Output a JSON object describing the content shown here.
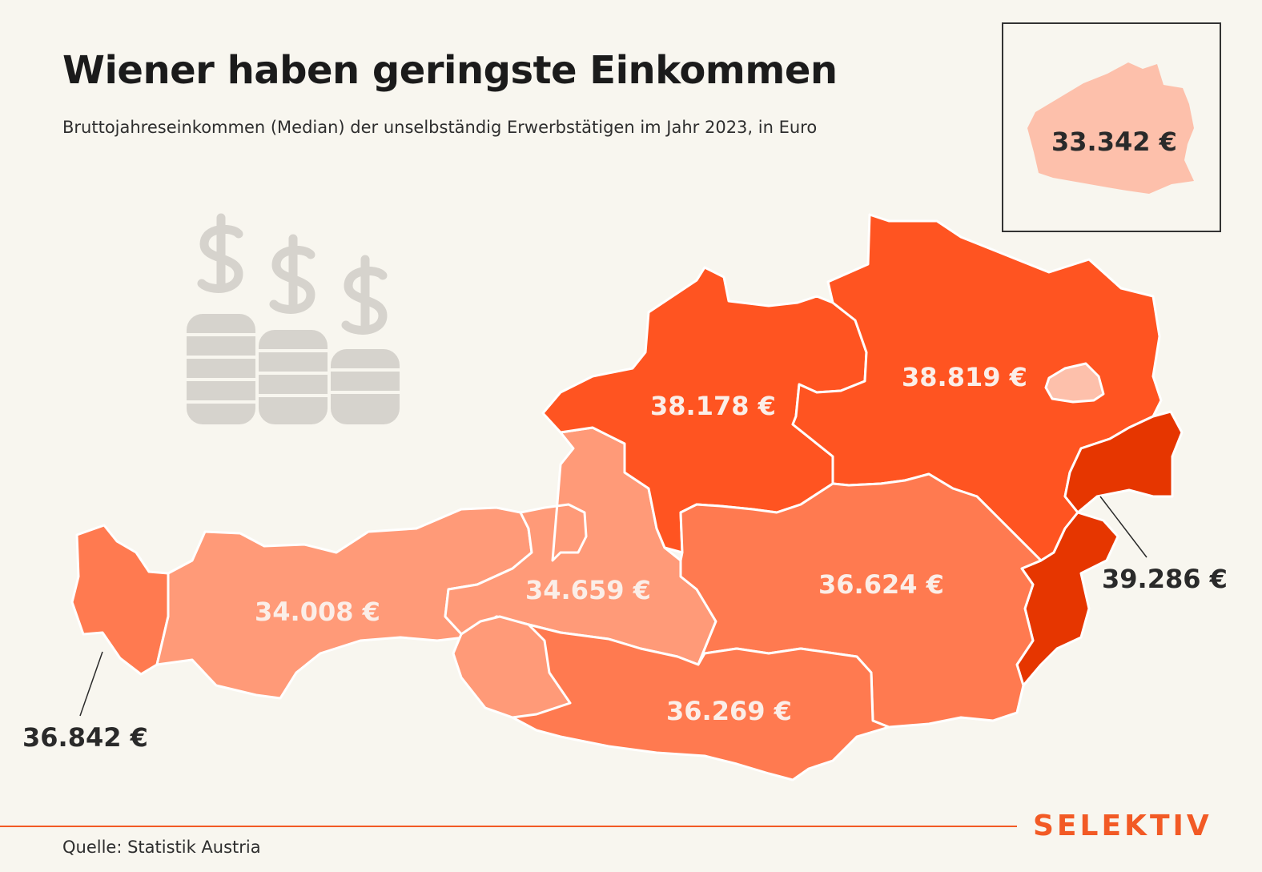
{
  "header": {
    "title": "Wiener haben geringste Einkommen",
    "subtitle": "Bruttojahreseinkommen (Median) der unselbständig Erwerbstätigen im Jahr 2023, in Euro"
  },
  "map": {
    "regions": [
      {
        "name": "Vorarlberg",
        "value": "36.842 €",
        "color": "#ff7a50"
      },
      {
        "name": "Tirol",
        "value": "34.008 €",
        "color": "#ff9a78"
      },
      {
        "name": "Salzburg",
        "value": "34.659 €",
        "color": "#ff9a78"
      },
      {
        "name": "Oberösterreich",
        "value": "38.178 €",
        "color": "#ff5421"
      },
      {
        "name": "Niederösterreich",
        "value": "38.819 €",
        "color": "#ff5421"
      },
      {
        "name": "Steiermark",
        "value": "36.624 €",
        "color": "#ff7a50"
      },
      {
        "name": "Kärnten",
        "value": "36.269 €",
        "color": "#ff7a50"
      },
      {
        "name": "Burgenland",
        "value": "39.286 €",
        "color": "#e63600"
      },
      {
        "name": "Wien",
        "value": "33.342 €",
        "color": "#fdc0ab"
      }
    ],
    "icon": "coins-dollar-icon"
  },
  "footer": {
    "source": "Quelle: Statistik Austria",
    "brand": "SELEKTIV",
    "brand_color": "#f25a25"
  }
}
